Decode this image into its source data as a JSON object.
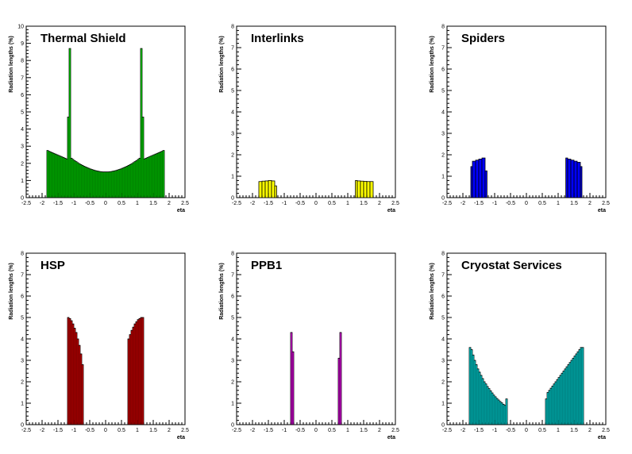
{
  "chart_data": [
    {
      "type": "histogram",
      "title": "Thermal Shield",
      "xlabel": "eta",
      "ylabel": "Radiation lengths (%)",
      "xlim": [
        -2.5,
        2.5
      ],
      "ylim": [
        0,
        10
      ],
      "xticks": [
        "-2.5",
        "-2",
        "-1.5",
        "-1",
        "-0.5",
        "0",
        "0.5",
        "1",
        "1.5",
        "2",
        "2.5"
      ],
      "yticks": [
        "0",
        "1",
        "2",
        "3",
        "4",
        "5",
        "6",
        "7",
        "8",
        "9",
        "10"
      ],
      "fill": "#00ff00",
      "bins": [
        [
          -1.85,
          -1.8,
          2.75
        ],
        [
          -1.8,
          -1.75,
          2.7
        ],
        [
          -1.75,
          -1.7,
          2.66
        ],
        [
          -1.7,
          -1.65,
          2.62
        ],
        [
          -1.65,
          -1.6,
          2.58
        ],
        [
          -1.6,
          -1.55,
          2.54
        ],
        [
          -1.55,
          -1.5,
          2.5
        ],
        [
          -1.5,
          -1.45,
          2.46
        ],
        [
          -1.45,
          -1.4,
          2.42
        ],
        [
          -1.4,
          -1.35,
          2.38
        ],
        [
          -1.35,
          -1.3,
          2.34
        ],
        [
          -1.3,
          -1.25,
          2.3
        ],
        [
          -1.25,
          -1.2,
          2.26
        ],
        [
          -1.2,
          -1.15,
          4.7
        ],
        [
          -1.15,
          -1.1,
          8.7
        ],
        [
          -1.1,
          -1.05,
          2.3
        ],
        [
          -1.05,
          -1.0,
          2.23
        ],
        [
          -1.0,
          -0.95,
          2.16
        ],
        [
          -0.95,
          -0.9,
          2.1
        ],
        [
          -0.9,
          -0.85,
          2.04
        ],
        [
          -0.85,
          -0.8,
          1.98
        ],
        [
          -0.8,
          -0.75,
          1.93
        ],
        [
          -0.75,
          -0.7,
          1.88
        ],
        [
          -0.7,
          -0.65,
          1.83
        ],
        [
          -0.65,
          -0.6,
          1.79
        ],
        [
          -0.6,
          -0.55,
          1.75
        ],
        [
          -0.55,
          -0.5,
          1.71
        ],
        [
          -0.5,
          -0.45,
          1.67
        ],
        [
          -0.45,
          -0.4,
          1.64
        ],
        [
          -0.4,
          -0.35,
          1.61
        ],
        [
          -0.35,
          -0.3,
          1.58
        ],
        [
          -0.3,
          -0.25,
          1.56
        ],
        [
          -0.25,
          -0.2,
          1.54
        ],
        [
          -0.2,
          -0.15,
          1.52
        ],
        [
          -0.15,
          -0.1,
          1.51
        ],
        [
          -0.1,
          -0.05,
          1.5
        ],
        [
          -0.05,
          0.0,
          1.5
        ],
        [
          0.0,
          0.05,
          1.5
        ],
        [
          0.05,
          0.1,
          1.5
        ],
        [
          0.1,
          0.15,
          1.51
        ],
        [
          0.15,
          0.2,
          1.52
        ],
        [
          0.2,
          0.25,
          1.54
        ],
        [
          0.25,
          0.3,
          1.56
        ],
        [
          0.3,
          0.35,
          1.58
        ],
        [
          0.35,
          0.4,
          1.61
        ],
        [
          0.4,
          0.45,
          1.64
        ],
        [
          0.45,
          0.5,
          1.67
        ],
        [
          0.5,
          0.55,
          1.71
        ],
        [
          0.55,
          0.6,
          1.75
        ],
        [
          0.6,
          0.65,
          1.79
        ],
        [
          0.65,
          0.7,
          1.83
        ],
        [
          0.7,
          0.75,
          1.88
        ],
        [
          0.75,
          0.8,
          1.93
        ],
        [
          0.8,
          0.85,
          1.98
        ],
        [
          0.85,
          0.9,
          2.04
        ],
        [
          0.9,
          0.95,
          2.1
        ],
        [
          0.95,
          1.0,
          2.16
        ],
        [
          1.0,
          1.05,
          2.23
        ],
        [
          1.05,
          1.1,
          2.3
        ],
        [
          1.1,
          1.15,
          8.7
        ],
        [
          1.15,
          1.2,
          4.7
        ],
        [
          1.2,
          1.25,
          2.26
        ],
        [
          1.25,
          1.3,
          2.3
        ],
        [
          1.3,
          1.35,
          2.34
        ],
        [
          1.35,
          1.4,
          2.38
        ],
        [
          1.4,
          1.45,
          2.42
        ],
        [
          1.45,
          1.5,
          2.46
        ],
        [
          1.5,
          1.55,
          2.5
        ],
        [
          1.55,
          1.6,
          2.54
        ],
        [
          1.6,
          1.65,
          2.58
        ],
        [
          1.65,
          1.7,
          2.62
        ],
        [
          1.7,
          1.75,
          2.66
        ],
        [
          1.75,
          1.8,
          2.7
        ],
        [
          1.8,
          1.85,
          2.75
        ]
      ]
    },
    {
      "type": "histogram",
      "title": "Interlinks",
      "xlabel": "eta",
      "ylabel": "Radiation lengths (%)",
      "xlim": [
        -2.5,
        2.5
      ],
      "ylim": [
        0,
        8
      ],
      "xticks": [
        "-2.5",
        "-2",
        "-1.5",
        "-1",
        "-0.5",
        "0",
        "0.5",
        "1",
        "1.5",
        "2",
        "2.5"
      ],
      "yticks": [
        "0",
        "1",
        "2",
        "3",
        "4",
        "5",
        "6",
        "7",
        "8"
      ],
      "fill": "#ffff00",
      "bins": [
        [
          -1.8,
          -1.7,
          0.75
        ],
        [
          -1.7,
          -1.6,
          0.77
        ],
        [
          -1.6,
          -1.5,
          0.78
        ],
        [
          -1.5,
          -1.4,
          0.8
        ],
        [
          -1.4,
          -1.3,
          0.78
        ],
        [
          -1.3,
          -1.24,
          0.55
        ],
        [
          1.24,
          1.3,
          0.8
        ],
        [
          1.3,
          1.4,
          0.78
        ],
        [
          1.4,
          1.5,
          0.77
        ],
        [
          1.5,
          1.6,
          0.76
        ],
        [
          1.6,
          1.7,
          0.75
        ],
        [
          1.7,
          1.8,
          0.75
        ]
      ]
    },
    {
      "type": "histogram",
      "title": "Spiders",
      "xlabel": "eta",
      "ylabel": "Radiation lengths (%)",
      "xlim": [
        -2.5,
        2.5
      ],
      "ylim": [
        0,
        8
      ],
      "xticks": [
        "-2.5",
        "-2",
        "-1.5",
        "-1",
        "-0.5",
        "0",
        "0.5",
        "1",
        "1.5",
        "2",
        "2.5"
      ],
      "yticks": [
        "0",
        "1",
        "2",
        "3",
        "4",
        "5",
        "6",
        "7",
        "8"
      ],
      "fill": "#0000ff",
      "bins": [
        [
          -1.75,
          -1.7,
          1.45
        ],
        [
          -1.7,
          -1.6,
          1.7
        ],
        [
          -1.6,
          -1.5,
          1.75
        ],
        [
          -1.5,
          -1.4,
          1.8
        ],
        [
          -1.4,
          -1.3,
          1.85
        ],
        [
          -1.3,
          -1.24,
          1.25
        ],
        [
          1.24,
          1.3,
          1.85
        ],
        [
          1.3,
          1.4,
          1.8
        ],
        [
          1.4,
          1.5,
          1.75
        ],
        [
          1.5,
          1.6,
          1.7
        ],
        [
          1.6,
          1.7,
          1.65
        ],
        [
          1.7,
          1.75,
          1.45
        ]
      ]
    },
    {
      "type": "histogram",
      "title": "HSP",
      "xlabel": "eta",
      "ylabel": "Radiation lengths (%)",
      "xlim": [
        -2.5,
        2.5
      ],
      "ylim": [
        0,
        8
      ],
      "xticks": [
        "-2.5",
        "-2",
        "-1.5",
        "-1",
        "-0.5",
        "0",
        "0.5",
        "1",
        "1.5",
        "2",
        "2.5"
      ],
      "yticks": [
        "0",
        "1",
        "2",
        "3",
        "4",
        "5",
        "6",
        "7",
        "8"
      ],
      "fill": "#ff0000",
      "bins": [
        [
          -1.2,
          -1.15,
          5.0
        ],
        [
          -1.15,
          -1.1,
          4.95
        ],
        [
          -1.1,
          -1.05,
          4.85
        ],
        [
          -1.05,
          -1.0,
          4.7
        ],
        [
          -1.0,
          -0.95,
          4.5
        ],
        [
          -0.95,
          -0.9,
          4.3
        ],
        [
          -0.9,
          -0.85,
          4.0
        ],
        [
          -0.85,
          -0.8,
          3.7
        ],
        [
          -0.8,
          -0.75,
          3.3
        ],
        [
          -0.75,
          -0.7,
          2.8
        ],
        [
          0.7,
          0.75,
          4.0
        ],
        [
          0.75,
          0.8,
          4.2
        ],
        [
          0.8,
          0.85,
          4.4
        ],
        [
          0.85,
          0.9,
          4.55
        ],
        [
          0.9,
          0.95,
          4.7
        ],
        [
          0.95,
          1.0,
          4.8
        ],
        [
          1.0,
          1.05,
          4.9
        ],
        [
          1.05,
          1.1,
          4.95
        ],
        [
          1.1,
          1.15,
          5.0
        ],
        [
          1.15,
          1.2,
          5.0
        ]
      ]
    },
    {
      "type": "histogram",
      "title": "PPB1",
      "xlabel": "eta",
      "ylabel": "Radiation lengths (%)",
      "xlim": [
        -2.5,
        2.5
      ],
      "ylim": [
        0,
        8
      ],
      "xticks": [
        "-2.5",
        "-2",
        "-1.5",
        "-1",
        "-0.5",
        "0",
        "0.5",
        "1",
        "1.5",
        "2",
        "2.5"
      ],
      "yticks": [
        "0",
        "1",
        "2",
        "3",
        "4",
        "5",
        "6",
        "7",
        "8"
      ],
      "fill": "#ff00ff",
      "bins": [
        [
          -0.8,
          -0.75,
          4.3
        ],
        [
          -0.75,
          -0.7,
          3.4
        ],
        [
          0.7,
          0.75,
          3.1
        ],
        [
          0.75,
          0.8,
          4.3
        ]
      ]
    },
    {
      "type": "histogram",
      "title": "Cryostat Services",
      "xlabel": "eta",
      "ylabel": "Radiation lengths (%)",
      "xlim": [
        -2.5,
        2.5
      ],
      "ylim": [
        0,
        8
      ],
      "xticks": [
        "-2.5",
        "-2",
        "-1.5",
        "-1",
        "-0.5",
        "0",
        "0.5",
        "1",
        "1.5",
        "2",
        "2.5"
      ],
      "yticks": [
        "0",
        "1",
        "2",
        "3",
        "4",
        "5",
        "6",
        "7",
        "8"
      ],
      "fill": "#00ffff",
      "bins": [
        [
          -1.8,
          -1.75,
          3.6
        ],
        [
          -1.75,
          -1.7,
          3.5
        ],
        [
          -1.7,
          -1.65,
          3.25
        ],
        [
          -1.65,
          -1.6,
          3.0
        ],
        [
          -1.6,
          -1.55,
          2.8
        ],
        [
          -1.55,
          -1.5,
          2.6
        ],
        [
          -1.5,
          -1.45,
          2.45
        ],
        [
          -1.45,
          -1.4,
          2.3
        ],
        [
          -1.4,
          -1.35,
          2.15
        ],
        [
          -1.35,
          -1.3,
          2.0
        ],
        [
          -1.3,
          -1.25,
          1.9
        ],
        [
          -1.25,
          -1.2,
          1.78
        ],
        [
          -1.2,
          -1.15,
          1.68
        ],
        [
          -1.15,
          -1.1,
          1.58
        ],
        [
          -1.1,
          -1.05,
          1.48
        ],
        [
          -1.05,
          -1.0,
          1.38
        ],
        [
          -1.0,
          -0.95,
          1.3
        ],
        [
          -0.95,
          -0.9,
          1.22
        ],
        [
          -0.9,
          -0.85,
          1.15
        ],
        [
          -0.85,
          -0.8,
          1.08
        ],
        [
          -0.8,
          -0.75,
          1.02
        ],
        [
          -0.75,
          -0.7,
          0.95
        ],
        [
          -0.7,
          -0.65,
          0.9
        ],
        [
          -0.65,
          -0.6,
          1.2
        ],
        [
          0.6,
          0.65,
          1.2
        ],
        [
          0.65,
          0.7,
          1.5
        ],
        [
          0.7,
          0.75,
          1.6
        ],
        [
          0.75,
          0.8,
          1.7
        ],
        [
          0.8,
          0.85,
          1.8
        ],
        [
          0.85,
          0.9,
          1.9
        ],
        [
          0.9,
          0.95,
          2.0
        ],
        [
          0.95,
          1.0,
          2.1
        ],
        [
          1.0,
          1.05,
          2.2
        ],
        [
          1.05,
          1.1,
          2.3
        ],
        [
          1.1,
          1.15,
          2.4
        ],
        [
          1.15,
          1.2,
          2.5
        ],
        [
          1.2,
          1.25,
          2.6
        ],
        [
          1.25,
          1.3,
          2.7
        ],
        [
          1.3,
          1.35,
          2.8
        ],
        [
          1.35,
          1.4,
          2.9
        ],
        [
          1.4,
          1.45,
          3.0
        ],
        [
          1.45,
          1.5,
          3.1
        ],
        [
          1.5,
          1.55,
          3.2
        ],
        [
          1.55,
          1.6,
          3.3
        ],
        [
          1.6,
          1.65,
          3.4
        ],
        [
          1.65,
          1.7,
          3.5
        ],
        [
          1.7,
          1.75,
          3.6
        ],
        [
          1.75,
          1.8,
          3.6
        ]
      ]
    }
  ]
}
